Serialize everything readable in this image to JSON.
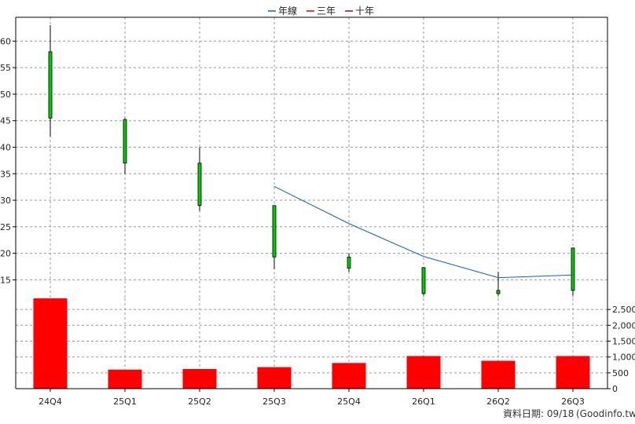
{
  "chart_data": {
    "type": "candlestick",
    "categories": [
      "24Q4",
      "25Q1",
      "25Q2",
      "25Q3",
      "25Q4",
      "26Q1",
      "26Q2",
      "26Q3"
    ],
    "candles": [
      {
        "open": 45.5,
        "high": 63.0,
        "low": 42.0,
        "close": 58.0
      },
      {
        "open": 37.0,
        "high": 45.5,
        "low": 35.0,
        "close": 45.2
      },
      {
        "open": 29.0,
        "high": 40.0,
        "low": 28.0,
        "close": 37.0
      },
      {
        "open": 19.3,
        "high": 29.0,
        "low": 17.0,
        "close": 29.0
      },
      {
        "open": 17.2,
        "high": 20.0,
        "low": 16.5,
        "close": 19.3
      },
      {
        "open": 12.4,
        "high": 17.3,
        "low": 12.0,
        "close": 17.3
      },
      {
        "open": 12.4,
        "high": 16.5,
        "low": 12.0,
        "close": 13.0
      },
      {
        "open": 13.0,
        "high": 21.0,
        "low": 12.0,
        "close": 21.0
      }
    ],
    "series": [
      {
        "name": "年線",
        "color": "#1060c0",
        "values": [
          null,
          null,
          null,
          32.6,
          25.6,
          19.4,
          15.4,
          15.9
        ]
      },
      {
        "name": "三年",
        "color": "#e00000",
        "values": [
          null,
          null,
          null,
          null,
          null,
          null,
          null,
          null
        ]
      },
      {
        "name": "十年",
        "color": "#a00040",
        "values": [
          null,
          null,
          null,
          null,
          null,
          null,
          null,
          null
        ]
      }
    ],
    "volume": [
      2850,
      600,
      620,
      680,
      810,
      1030,
      880,
      1030
    ],
    "price_ticks": [
      15,
      20,
      25,
      30,
      35,
      40,
      45,
      50,
      55,
      60
    ],
    "volume_ticks": [
      "0",
      "500",
      "1,000",
      "1,500",
      "2,000",
      "2,500"
    ],
    "volume_tick_values": [
      0,
      500,
      1000,
      1500,
      2000,
      2500
    ],
    "ylim_price": [
      11.5,
      64.5
    ],
    "ylim_volume": [
      0,
      2850
    ],
    "grid": true,
    "legend_position": "top-center",
    "colors": {
      "up": "#00cc00",
      "down": "#cc0000",
      "volume": "#ff0000",
      "grid": "#999999"
    }
  },
  "footer": {
    "date_label": "資料日期: 09/18",
    "source": "(Goodinfo.tw)"
  }
}
